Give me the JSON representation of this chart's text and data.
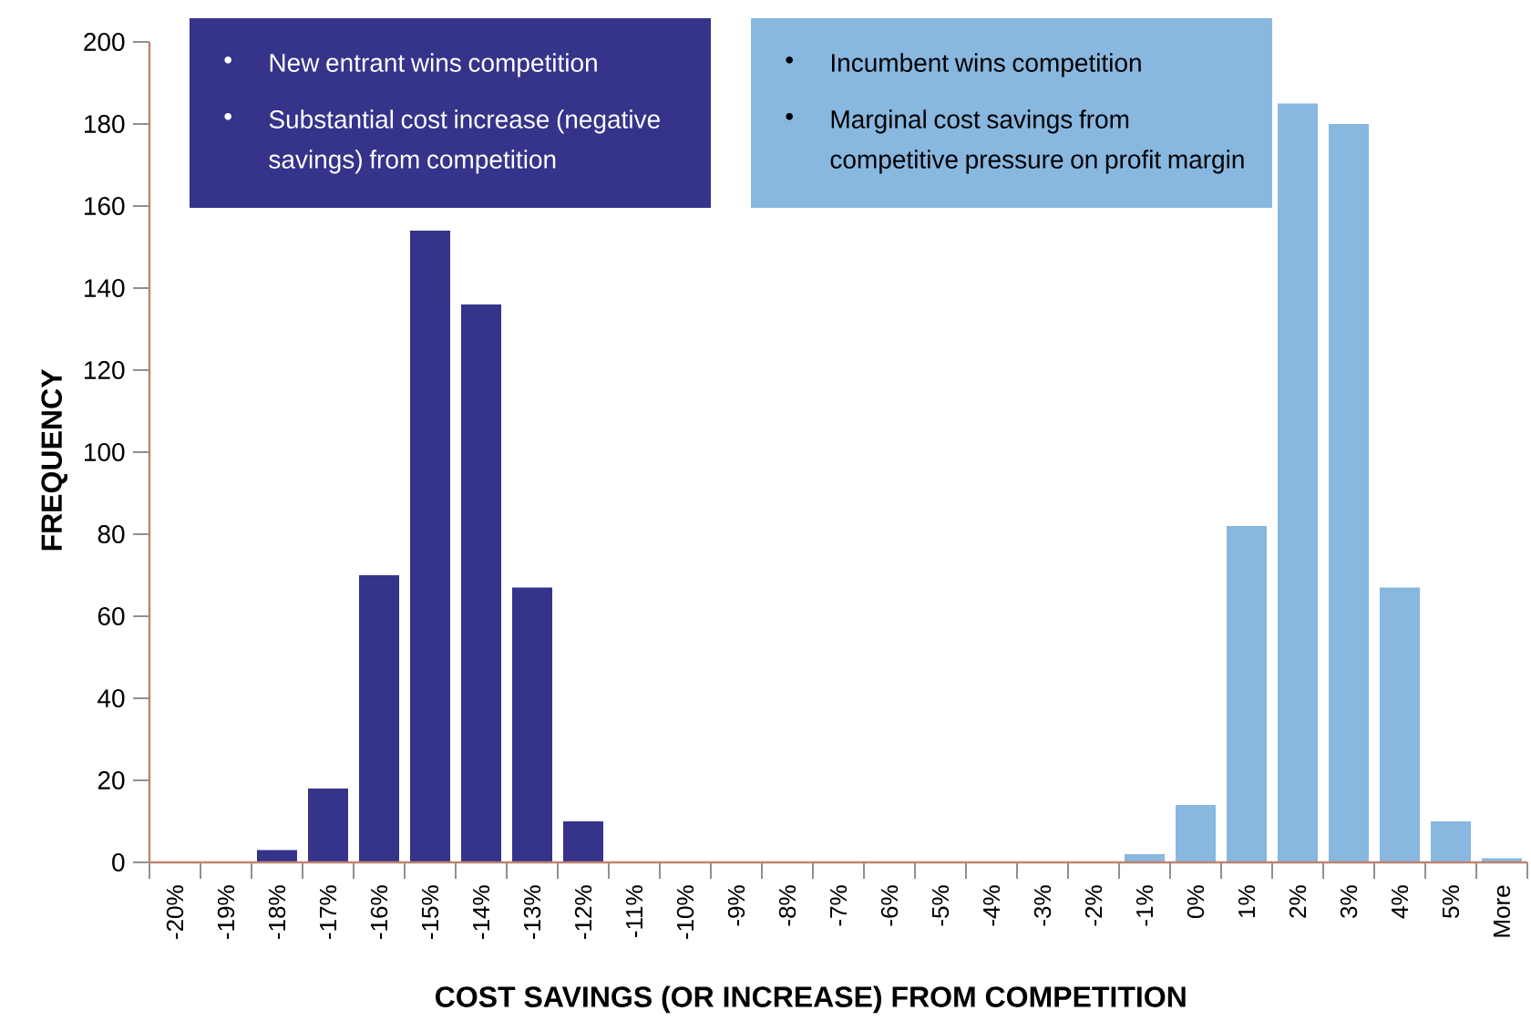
{
  "chart_data": {
    "type": "bar",
    "xlabel": "COST SAVINGS (OR INCREASE) FROM COMPETITION",
    "ylabel": "FREQUENCY",
    "categories": [
      "-20%",
      "-19%",
      "-18%",
      "-17%",
      "-16%",
      "-15%",
      "-14%",
      "-13%",
      "-12%",
      "-11%",
      "-10%",
      "-9%",
      "-8%",
      "-7%",
      "-6%",
      "-5%",
      "-4%",
      "-3%",
      "-2%",
      "-1%",
      "0%",
      "1%",
      "2%",
      "3%",
      "4%",
      "5%",
      "More"
    ],
    "series": [
      {
        "color": "#35338A",
        "values": [
          0,
          0,
          3,
          18,
          70,
          154,
          136,
          67,
          10,
          0,
          0,
          0,
          0,
          0,
          0,
          0,
          0,
          0,
          0,
          null,
          null,
          null,
          null,
          null,
          null,
          null,
          null
        ]
      },
      {
        "color": "#88B7E0",
        "values": [
          null,
          null,
          null,
          null,
          null,
          null,
          null,
          null,
          null,
          null,
          null,
          null,
          null,
          null,
          null,
          null,
          null,
          null,
          null,
          2,
          14,
          82,
          185,
          180,
          67,
          10,
          1
        ]
      }
    ],
    "annotations": [
      "New entrant wins competition",
      "Substantial cost increase (negative savings) from competition",
      "Incumbent wins competition",
      "Marginal cost savings from competitive pressure on profit margin"
    ],
    "ylim": [
      0,
      200
    ],
    "yticks": [
      0,
      20,
      40,
      60,
      80,
      100,
      120,
      140,
      160,
      180,
      200
    ]
  }
}
